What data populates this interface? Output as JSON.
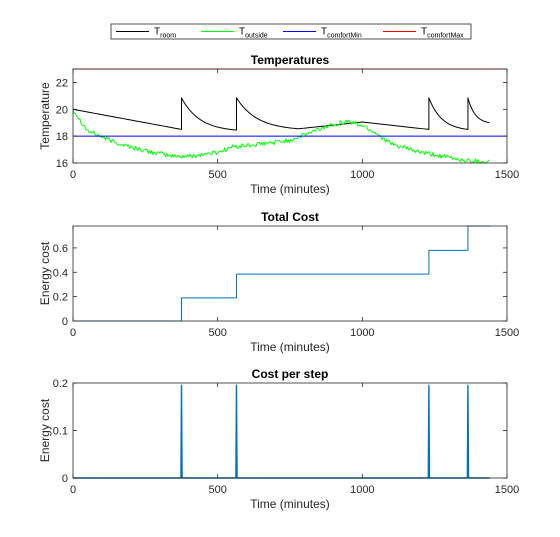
{
  "legend": {
    "entries": [
      {
        "base": "T",
        "sub": "room",
        "color": "#000000"
      },
      {
        "base": "T",
        "sub": "outside",
        "color": "#00ff00"
      },
      {
        "base": "T",
        "sub": "comfortMin",
        "color": "#0000ff"
      },
      {
        "base": "T",
        "sub": "comfortMax",
        "color": "#ff0000"
      }
    ]
  },
  "chart_data": [
    {
      "type": "line",
      "title": "Temperatures",
      "xlabel": "Time (minutes)",
      "ylabel": "Temperature",
      "xlim": [
        0,
        1500
      ],
      "ylim": [
        16,
        23
      ],
      "xticks": [
        0,
        500,
        1000,
        1500
      ],
      "yticks": [
        16,
        18,
        20,
        22
      ],
      "grid": false,
      "legend_position": "top-center outside",
      "series": [
        {
          "name": "T_room",
          "color": "#000000",
          "kind": "room",
          "x": [
            0,
            375,
            375,
            565,
            565,
            780,
            1000,
            1230,
            1230,
            1365,
            1365,
            1440
          ],
          "y": [
            20.0,
            18.5,
            20.85,
            18.45,
            20.85,
            18.55,
            19.05,
            18.5,
            20.85,
            18.5,
            20.85,
            19.0
          ]
        },
        {
          "name": "T_outside",
          "color": "#00ff00",
          "kind": "outside",
          "x": [
            0,
            50,
            150,
            250,
            350,
            400,
            500,
            550,
            650,
            750,
            850,
            900,
            950,
            1000,
            1050,
            1100,
            1200,
            1300,
            1350,
            1440
          ],
          "y": [
            20.0,
            18.4,
            17.5,
            16.9,
            16.5,
            16.5,
            16.8,
            17.2,
            17.4,
            17.7,
            18.5,
            18.9,
            19.1,
            18.8,
            18.2,
            17.4,
            16.8,
            16.4,
            16.2,
            16.1
          ]
        },
        {
          "name": "T_comfortMin",
          "color": "#0000ff",
          "kind": "const",
          "x": [
            0,
            1500
          ],
          "y": [
            18,
            18
          ]
        },
        {
          "name": "T_comfortMax",
          "color": "#ff0000",
          "kind": "const",
          "x": [
            0,
            1500
          ],
          "y": [
            23,
            23
          ]
        }
      ]
    },
    {
      "type": "line",
      "title": "Total Cost",
      "xlabel": "Time (minutes)",
      "ylabel": "Energy cost",
      "xlim": [
        0,
        1500
      ],
      "ylim": [
        0,
        0.78
      ],
      "xticks": [
        0,
        500,
        1000,
        1500
      ],
      "yticks": [
        0,
        0.2,
        0.4,
        0.6
      ],
      "grid": false,
      "series": [
        {
          "color": "#0072bd",
          "kind": "step",
          "x": [
            0,
            375,
            375,
            565,
            565,
            1230,
            1230,
            1365,
            1365,
            1440
          ],
          "y": [
            0,
            0,
            0.19,
            0.19,
            0.385,
            0.385,
            0.58,
            0.58,
            0.78,
            0.78
          ]
        }
      ]
    },
    {
      "type": "line",
      "title": "Cost per step",
      "xlabel": "Time (minutes)",
      "ylabel": "Energy cost",
      "xlim": [
        0,
        1500
      ],
      "ylim": [
        0,
        0.2
      ],
      "xticks": [
        0,
        500,
        1000,
        1500
      ],
      "yticks": [
        0,
        0.1,
        0.2
      ],
      "grid": false,
      "series": [
        {
          "color": "#0072bd",
          "kind": "spikes",
          "x": [
            0,
            373,
            375,
            377,
            563,
            565,
            567,
            1228,
            1230,
            1232,
            1363,
            1365,
            1367,
            1440
          ],
          "y": [
            0,
            0,
            0.195,
            0,
            0,
            0.195,
            0,
            0,
            0.195,
            0,
            0,
            0.195,
            0,
            0
          ]
        }
      ]
    }
  ]
}
